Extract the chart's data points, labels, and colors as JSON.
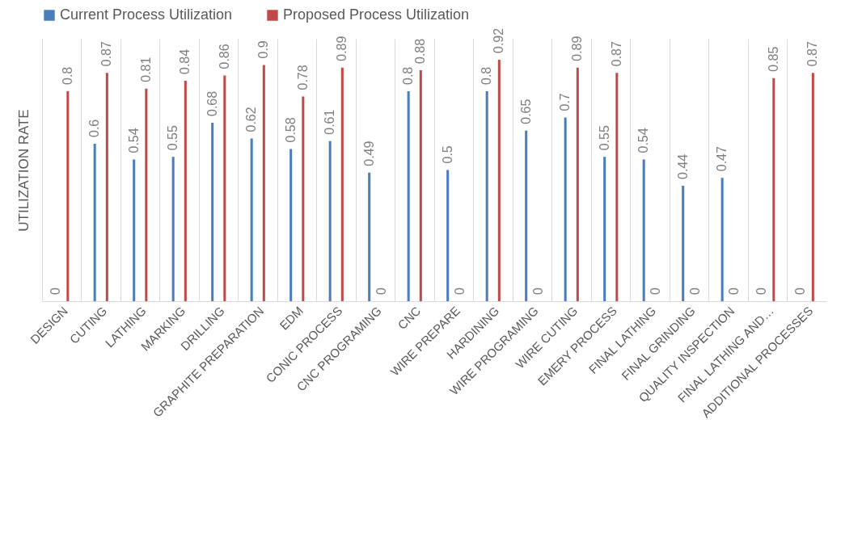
{
  "chart_data": {
    "type": "bar",
    "ylabel": "UTILIZATION RATE",
    "categories": [
      "DESIGN",
      "CUTING",
      "LATHING",
      "MARKING",
      "DRILLING",
      "GRAPHITE PREPARATION",
      "EDM",
      "CONIC PROCESS",
      "CNC PROGRAMING",
      "CNC",
      "WIRE PREPARE",
      "HARDINING",
      "WIRE PROGRAMING",
      "WIRE CUTING",
      "EMERY PROCESS",
      "FINAL LATHING",
      "FINAL GRINDING",
      "QUALITY INSPECTION",
      "FINAL LATHING AND…",
      "ADDITIONAL PROCESSES"
    ],
    "series": [
      {
        "name": "Current Process Utilization",
        "color": "#4a7ebb",
        "values": [
          0,
          0.6,
          0.54,
          0.55,
          0.68,
          0.62,
          0.58,
          0.61,
          0.49,
          0.8,
          0.5,
          0.8,
          0.65,
          0.7,
          0.55,
          0.54,
          0.44,
          0.47,
          0,
          0
        ]
      },
      {
        "name": "Proposed Process Utilization",
        "color": "#be4b48",
        "values": [
          0.8,
          0.87,
          0.81,
          0.84,
          0.86,
          0.9,
          0.78,
          0.89,
          0,
          0.88,
          0,
          0.92,
          0,
          0.89,
          0.87,
          0,
          0,
          0,
          0.85,
          0.87
        ]
      }
    ],
    "tick_labels": "x",
    "grid": "x",
    "legend": "top",
    "data_labels": true
  }
}
